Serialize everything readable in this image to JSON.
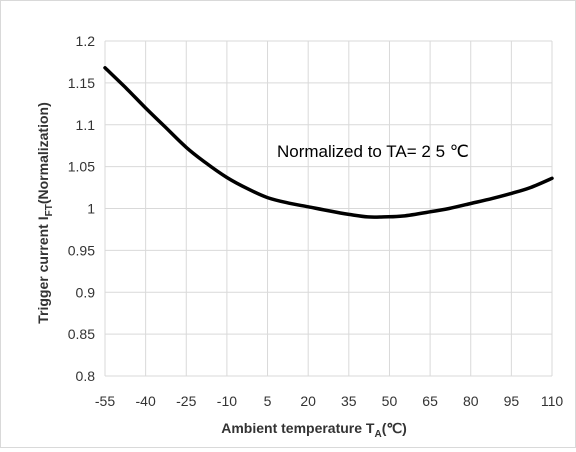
{
  "chart_data": {
    "type": "line",
    "ylabel_main": "Trigger current I",
    "ylabel_sub": "FT",
    "ylabel_rest": "(Normalization)",
    "xlabel_main": "Ambient temperature T",
    "xlabel_sub": "A",
    "xlabel_rest": "(℃)",
    "annotation": "Normalized  to  TA= 2 5 ℃",
    "xlim": [
      -55,
      110
    ],
    "ylim": [
      0.8,
      1.2
    ],
    "x_ticks": [
      -55,
      -40,
      -25,
      -10,
      5,
      20,
      35,
      50,
      65,
      80,
      95,
      110
    ],
    "x_tick_labels": [
      "-55",
      "-40",
      "-25",
      "-10",
      "5",
      "20",
      "35",
      "50",
      "65",
      "80",
      "95",
      "110"
    ],
    "y_ticks": [
      0.8,
      0.85,
      0.9,
      0.95,
      1.0,
      1.05,
      1.1,
      1.15,
      1.2
    ],
    "y_tick_labels": [
      "0.8",
      "0.85",
      "0.9",
      "0.95",
      "1",
      "1.05",
      "1.1",
      "1.15",
      "1.2"
    ],
    "grid": true,
    "series": [
      {
        "x": [
          -55,
          -47,
          -40,
          -33,
          -25,
          -18,
          -10,
          -2,
          5,
          12,
          20,
          28,
          35,
          42,
          48,
          55,
          65,
          72,
          80,
          88,
          95,
          102,
          110
        ],
        "y": [
          1.168,
          1.143,
          1.12,
          1.098,
          1.073,
          1.055,
          1.037,
          1.023,
          1.013,
          1.007,
          1.002,
          0.997,
          0.993,
          0.99,
          0.99,
          0.991,
          0.996,
          1.0,
          1.006,
          1.012,
          1.018,
          1.025,
          1.036
        ]
      }
    ],
    "colors": {
      "line": "#000000",
      "grid": "#d9d9d9",
      "text": "#333333"
    }
  }
}
